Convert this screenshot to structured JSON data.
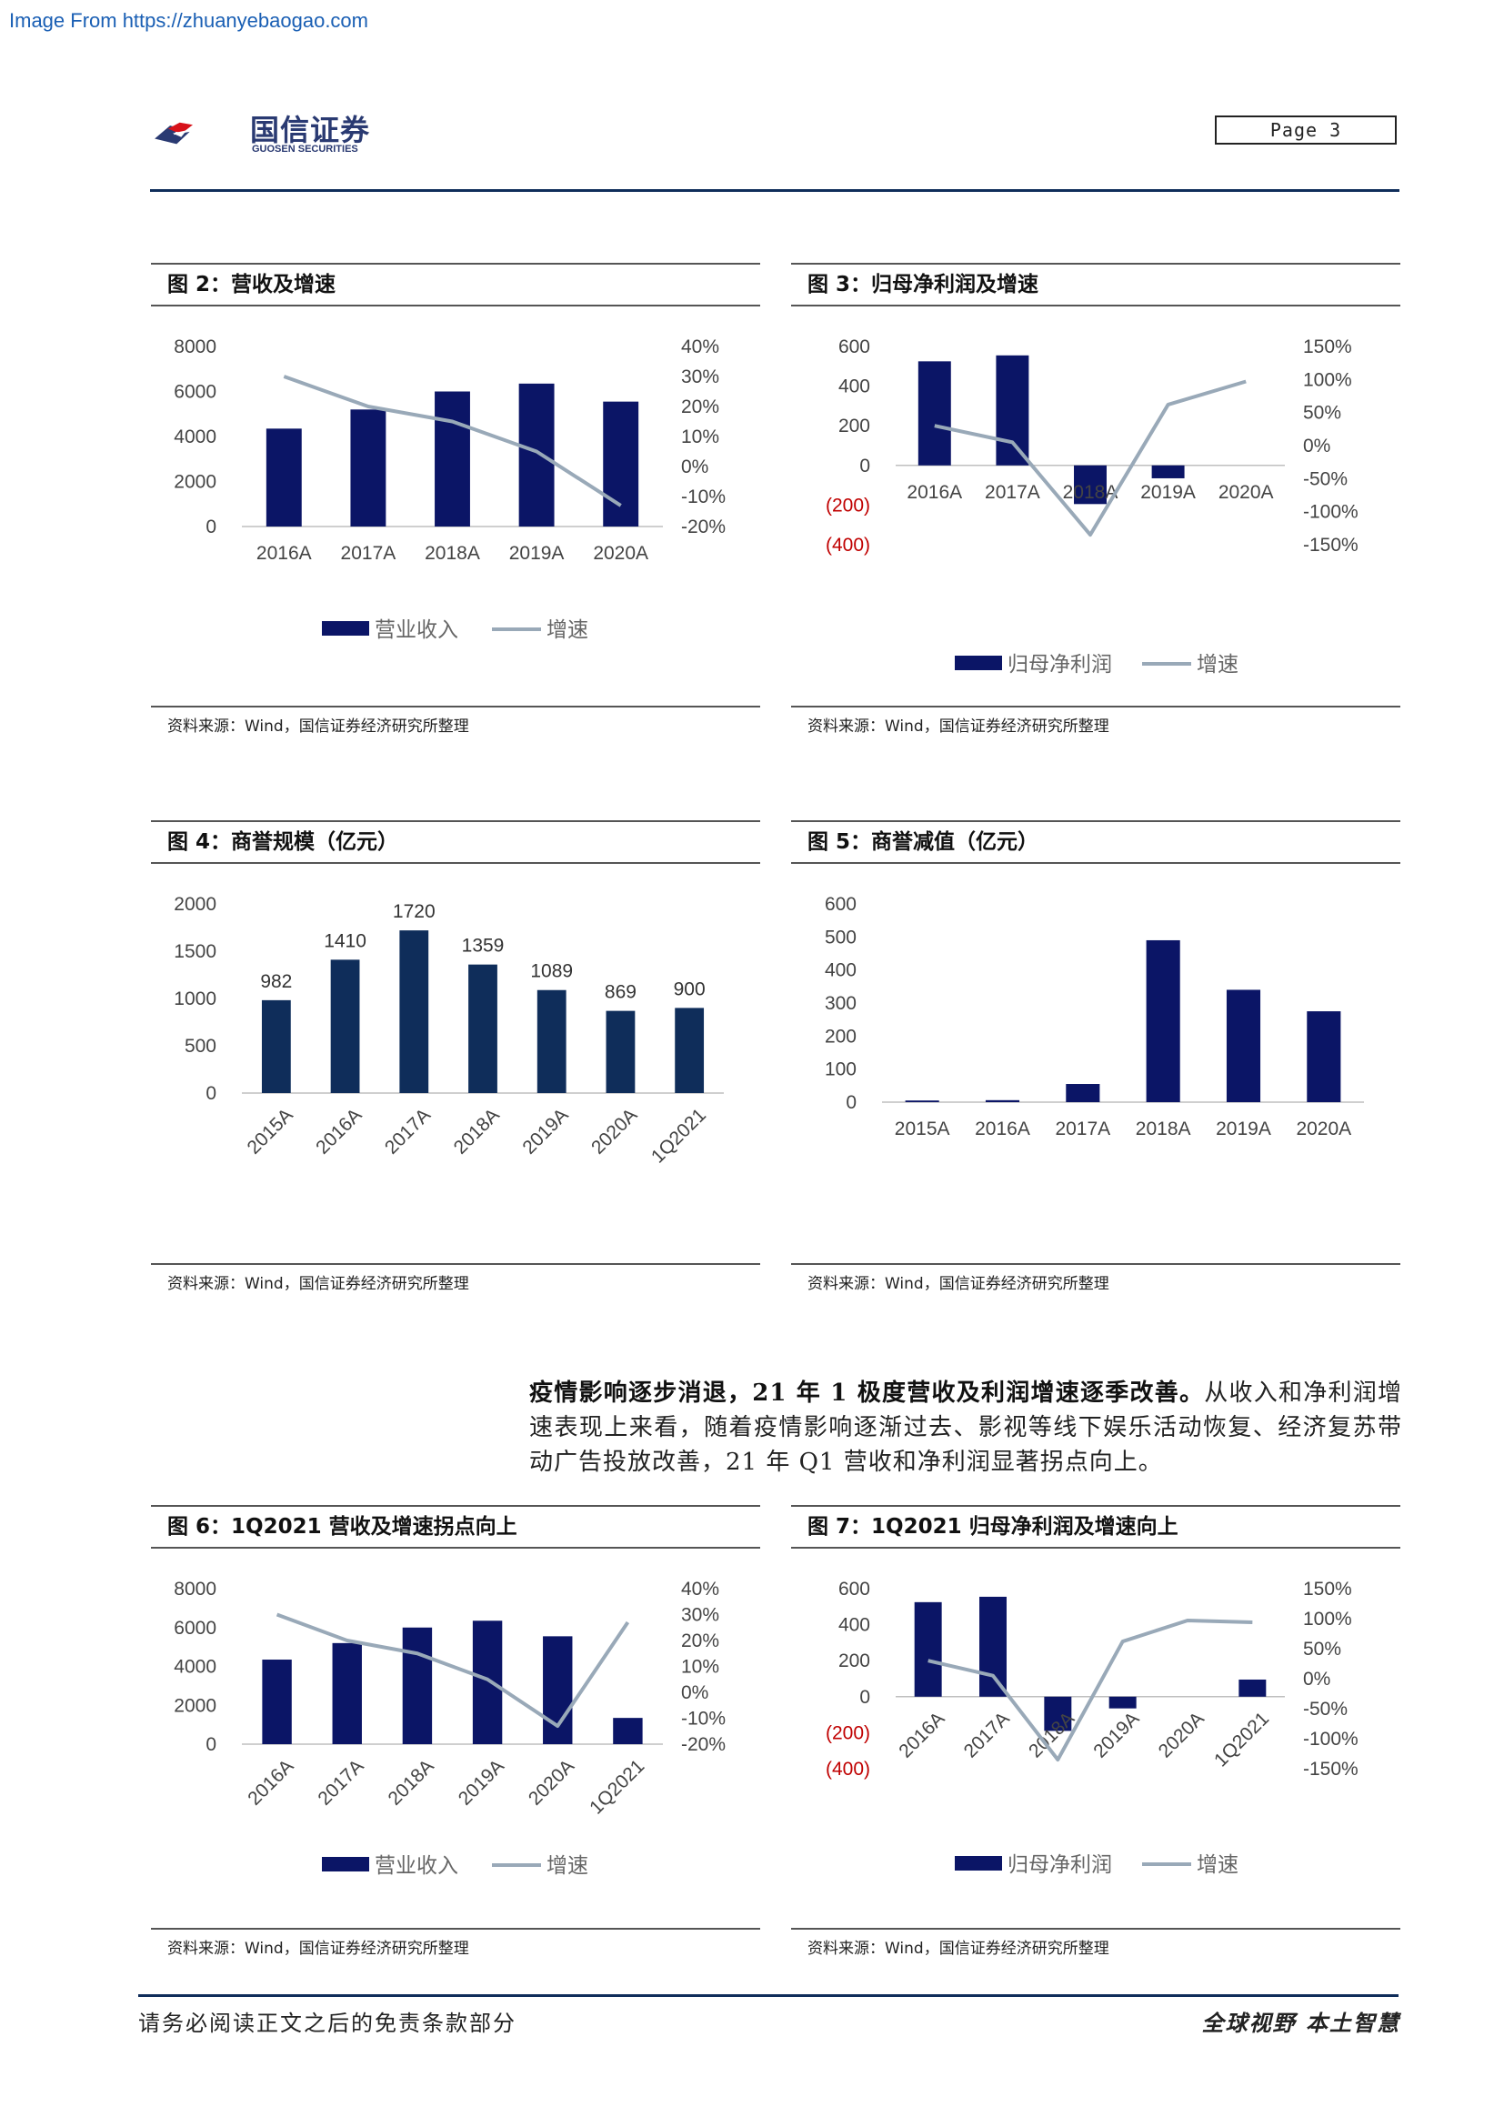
{
  "header": {
    "source_url": "Image From https://zhuanyebaogao.com",
    "logo_cn": "国信证券",
    "logo_en": "GUOSEN SECURITIES",
    "page_label": "Page  3"
  },
  "colors": {
    "navy": "#0b1566",
    "dark_navy": "#0f2d5a",
    "line_gray": "#99a9b8",
    "negative_red": "#c00000"
  },
  "figures": {
    "fig2": {
      "title": "图 2：营收及增速",
      "source": "资料来源：Wind，国信证券经济研究所整理"
    },
    "fig3": {
      "title": "图 3：归母净利润及增速",
      "source": "资料来源：Wind，国信证券经济研究所整理"
    },
    "fig4": {
      "title": "图 4：商誉规模（亿元）",
      "source": "资料来源：Wind，国信证券经济研究所整理"
    },
    "fig5": {
      "title": "图 5：商誉减值（亿元）",
      "source": "资料来源：Wind，国信证券经济研究所整理"
    },
    "fig6": {
      "title": "图 6：1Q2021 营收及增速拐点向上",
      "source": "资料来源：Wind，国信证券经济研究所整理"
    },
    "fig7": {
      "title": "图 7：1Q2021 归母净利润及增速向上",
      "source": "资料来源：Wind，国信证券经济研究所整理"
    }
  },
  "paragraph": {
    "bold": "疫情影响逐步消退，21 年 1 极度营收及利润增速逐季改善。",
    "text": "从收入和净利润增速表现上来看，随着疫情影响逐渐过去、影视等线下娱乐活动恢复、经济复苏带动广告投放改善，21 年 Q1 营收和净利润显著拐点向上。"
  },
  "footer": {
    "left": "请务必阅读正文之后的免责条款部分",
    "right": "全球视野  本土智慧"
  },
  "chart_data": [
    {
      "id": "fig2",
      "type": "bar+line",
      "categories": [
        "2016A",
        "2017A",
        "2018A",
        "2019A",
        "2020A"
      ],
      "series": [
        {
          "name": "营业收入",
          "kind": "bar",
          "axis": "left",
          "values": [
            4350,
            5200,
            6000,
            6350,
            5550
          ]
        },
        {
          "name": "增速",
          "kind": "line",
          "axis": "right",
          "values": [
            30,
            20,
            15,
            5,
            -13
          ]
        }
      ],
      "ylim_left": [
        0,
        8000
      ],
      "yticks_left": [
        "0",
        "2000",
        "4000",
        "6000",
        "8000"
      ],
      "ylim_right": [
        -20,
        40
      ],
      "yticks_right": [
        "-20%",
        "-10%",
        "0%",
        "10%",
        "20%",
        "30%",
        "40%"
      ],
      "legend": [
        "营业收入",
        "增速"
      ],
      "legend_position": "bottom",
      "grid": false
    },
    {
      "id": "fig3",
      "type": "bar+line",
      "categories": [
        "2016A",
        "2017A",
        "2018A",
        "2019A",
        "2020A"
      ],
      "series": [
        {
          "name": "归母净利润",
          "kind": "bar",
          "axis": "left",
          "values": [
            525,
            555,
            -195,
            -65,
            0
          ]
        },
        {
          "name": "增速",
          "kind": "line",
          "axis": "right",
          "values": [
            30,
            5,
            -135,
            62,
            97
          ]
        }
      ],
      "ylim_left": [
        -400,
        600
      ],
      "yticks_left": [
        "(400)",
        "(200)",
        "0",
        "200",
        "400",
        "600"
      ],
      "ylim_right": [
        -150,
        150
      ],
      "yticks_right": [
        "-150%",
        "-100%",
        "-50%",
        "0%",
        "50%",
        "100%",
        "150%"
      ],
      "legend": [
        "归母净利润",
        "增速"
      ],
      "legend_position": "bottom",
      "grid": false
    },
    {
      "id": "fig4",
      "type": "bar",
      "categories": [
        "2015A",
        "2016A",
        "2017A",
        "2018A",
        "2019A",
        "2020A",
        "1Q2021"
      ],
      "values": [
        982,
        1410,
        1720,
        1359,
        1089,
        869,
        900
      ],
      "data_labels": [
        "982",
        "1410",
        "1720",
        "1359",
        "1089",
        "869",
        "900"
      ],
      "ylim": [
        0,
        2000
      ],
      "yticks": [
        "0",
        "500",
        "1000",
        "1500",
        "2000"
      ],
      "grid": false
    },
    {
      "id": "fig5",
      "type": "bar",
      "categories": [
        "2015A",
        "2016A",
        "2017A",
        "2018A",
        "2019A",
        "2020A"
      ],
      "values": [
        5,
        6,
        55,
        490,
        340,
        275
      ],
      "ylim": [
        0,
        600
      ],
      "yticks": [
        "0",
        "100",
        "200",
        "300",
        "400",
        "500",
        "600"
      ],
      "grid": false
    },
    {
      "id": "fig6",
      "type": "bar+line",
      "categories": [
        "2016A",
        "2017A",
        "2018A",
        "2019A",
        "2020A",
        "1Q2021"
      ],
      "series": [
        {
          "name": "营业收入",
          "kind": "bar",
          "axis": "left",
          "values": [
            4350,
            5200,
            6000,
            6350,
            5550,
            1350
          ]
        },
        {
          "name": "增速",
          "kind": "line",
          "axis": "right",
          "values": [
            30,
            20,
            15,
            5,
            -13,
            27
          ]
        }
      ],
      "ylim_left": [
        0,
        8000
      ],
      "yticks_left": [
        "0",
        "2000",
        "4000",
        "6000",
        "8000"
      ],
      "ylim_right": [
        -20,
        40
      ],
      "yticks_right": [
        "-20%",
        "-10%",
        "0%",
        "10%",
        "20%",
        "30%",
        "40%"
      ],
      "legend": [
        "营业收入",
        "增速"
      ],
      "legend_position": "bottom",
      "grid": false
    },
    {
      "id": "fig7",
      "type": "bar+line",
      "categories": [
        "2016A",
        "2017A",
        "2018A",
        "2019A",
        "2020A",
        "1Q2021"
      ],
      "series": [
        {
          "name": "归母净利润",
          "kind": "bar",
          "axis": "left",
          "values": [
            525,
            555,
            -190,
            -65,
            0,
            95
          ]
        },
        {
          "name": "增速",
          "kind": "line",
          "axis": "right",
          "values": [
            30,
            5,
            -135,
            62,
            97,
            94
          ]
        }
      ],
      "ylim_left": [
        -400,
        600
      ],
      "yticks_left": [
        "(400)",
        "(200)",
        "0",
        "200",
        "400",
        "600"
      ],
      "ylim_right": [
        -150,
        150
      ],
      "yticks_right": [
        "-150%",
        "-100%",
        "-50%",
        "0%",
        "50%",
        "100%",
        "150%"
      ],
      "legend": [
        "归母净利润",
        "增速"
      ],
      "legend_position": "bottom",
      "grid": false
    }
  ]
}
